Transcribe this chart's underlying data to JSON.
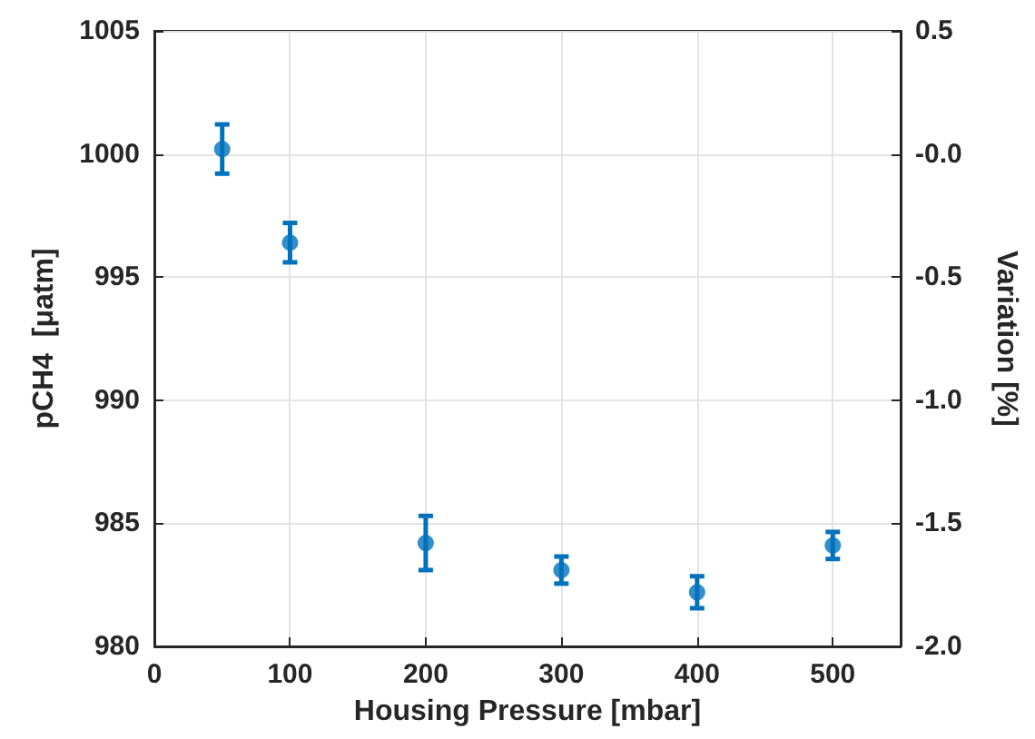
{
  "chart_data": {
    "type": "scatter",
    "xlabel": "Housing Pressure [mbar]",
    "ylabel": "pCH4  [μatm]",
    "y2label": "Variation [%]",
    "x": [
      50,
      100,
      200,
      300,
      400,
      500
    ],
    "series": [
      {
        "color": "#0072bd",
        "values": [
          1000.2,
          996.4,
          984.2,
          983.1,
          982.2,
          984.1
        ],
        "errors": [
          1.0,
          0.8,
          1.1,
          0.55,
          0.65,
          0.55
        ]
      }
    ],
    "xlim": [
      0,
      550
    ],
    "xticks": [
      0,
      100,
      200,
      300,
      400,
      500
    ],
    "ylim": [
      980,
      1005
    ],
    "yticks": [
      980,
      985,
      990,
      995,
      1000,
      1005
    ],
    "y2lim": [
      -2,
      0.5
    ],
    "y2ticks": [
      {
        "value": -2,
        "label": "-2.0"
      },
      {
        "value": -1.5,
        "label": "-1.5"
      },
      {
        "value": -1,
        "label": "-1.0"
      },
      {
        "value": -0.5,
        "label": "-0.5"
      },
      {
        "value": 0,
        "label": "-0.0"
      },
      {
        "value": 0.5,
        "label": "0.5"
      }
    ],
    "grid": true,
    "marker": "circle"
  }
}
